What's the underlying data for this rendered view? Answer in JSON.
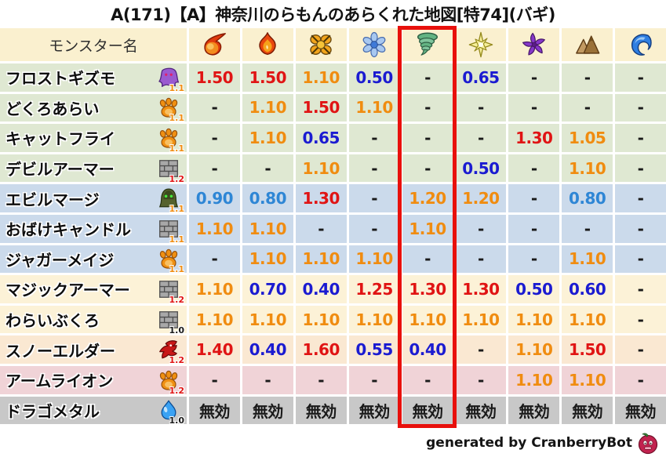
{
  "title": "A(171)【A】神奈川のらもんのあらくれた地図[特74](バギ)",
  "footer": {
    "credit": "generated by CranberryBot",
    "bot_icon": "cranberry-bot-icon"
  },
  "colors": {
    "header_bg": "#faf0cf",
    "highlight_box": "#e8100c",
    "row_bg": {
      "green": "#dfe8d2",
      "blue": "#cbdaeb",
      "cream": "#fcf2d7",
      "peach": "#fae8d2",
      "pink": "#f0d3d7",
      "gray": "#c8c8c8"
    },
    "value_colors": {
      "red": "#e01414",
      "orange": "#f08c10",
      "deepblue": "#1b1bd1",
      "skyblue": "#2e86d5",
      "plain": "#1a1a1a"
    },
    "weight_colors": {
      "orange": "#f08c10",
      "red": "#e01414",
      "black": "#1a1a1a"
    }
  },
  "table": {
    "name_header": "モンスター名",
    "element_columns": [
      {
        "icon": "fireball-icon",
        "highlighted": false
      },
      {
        "icon": "flame-icon",
        "highlighted": false
      },
      {
        "icon": "explosion-icon",
        "highlighted": false
      },
      {
        "icon": "snowflake-icon",
        "highlighted": false
      },
      {
        "icon": "tornado-icon",
        "highlighted": true
      },
      {
        "icon": "starburst-icon",
        "highlighted": false
      },
      {
        "icon": "pinwheel-icon",
        "highlighted": false
      },
      {
        "icon": "mountain-icon",
        "highlighted": false
      },
      {
        "icon": "wave-icon",
        "highlighted": false
      }
    ],
    "rows": [
      {
        "name": "フロストギズモ",
        "family_icon": "ghost-icon",
        "weight": "1.1",
        "weight_color": "orange",
        "bg": "green",
        "values": [
          "1.50",
          "1.50",
          "1.10",
          "0.50",
          "-",
          "0.65",
          "-",
          "-",
          "-"
        ],
        "value_colors": [
          "red",
          "red",
          "orange",
          "deepblue",
          "plain",
          "deepblue",
          "plain",
          "plain",
          "plain"
        ]
      },
      {
        "name": "どくろあらい",
        "family_icon": "paw-icon",
        "weight": "1.1",
        "weight_color": "orange",
        "bg": "green",
        "values": [
          "-",
          "1.10",
          "1.50",
          "1.10",
          "-",
          "-",
          "-",
          "-",
          "-"
        ],
        "value_colors": [
          "plain",
          "orange",
          "red",
          "orange",
          "plain",
          "plain",
          "plain",
          "plain",
          "plain"
        ]
      },
      {
        "name": "キャットフライ",
        "family_icon": "paw-icon",
        "weight": "1.1",
        "weight_color": "orange",
        "bg": "green",
        "values": [
          "-",
          "1.10",
          "0.65",
          "-",
          "-",
          "-",
          "1.30",
          "1.05",
          "-"
        ],
        "value_colors": [
          "plain",
          "orange",
          "deepblue",
          "plain",
          "plain",
          "plain",
          "red",
          "orange",
          "plain"
        ]
      },
      {
        "name": "デビルアーマー",
        "family_icon": "brick-icon",
        "weight": "1.2",
        "weight_color": "red",
        "bg": "green",
        "values": [
          "-",
          "-",
          "1.10",
          "-",
          "-",
          "0.50",
          "-",
          "1.10",
          "-"
        ],
        "value_colors": [
          "plain",
          "plain",
          "orange",
          "plain",
          "plain",
          "deepblue",
          "plain",
          "orange",
          "plain"
        ]
      },
      {
        "name": "エビルマージ",
        "family_icon": "hood-icon",
        "weight": "1.1",
        "weight_color": "orange",
        "bg": "blue",
        "values": [
          "0.90",
          "0.80",
          "1.30",
          "-",
          "1.20",
          "1.20",
          "-",
          "0.80",
          "-"
        ],
        "value_colors": [
          "skyblue",
          "skyblue",
          "red",
          "plain",
          "orange",
          "orange",
          "plain",
          "skyblue",
          "plain"
        ]
      },
      {
        "name": "おばけキャンドル",
        "family_icon": "brick-icon",
        "weight": "1.1",
        "weight_color": "orange",
        "bg": "blue",
        "values": [
          "1.10",
          "1.10",
          "-",
          "-",
          "1.10",
          "-",
          "-",
          "-",
          "-"
        ],
        "value_colors": [
          "orange",
          "orange",
          "plain",
          "plain",
          "orange",
          "plain",
          "plain",
          "plain",
          "plain"
        ]
      },
      {
        "name": "ジャガーメイジ",
        "family_icon": "paw-icon",
        "weight": "1.1",
        "weight_color": "orange",
        "bg": "blue",
        "values": [
          "-",
          "1.10",
          "1.10",
          "1.10",
          "-",
          "-",
          "-",
          "1.10",
          "-"
        ],
        "value_colors": [
          "plain",
          "orange",
          "orange",
          "orange",
          "plain",
          "plain",
          "plain",
          "orange",
          "plain"
        ]
      },
      {
        "name": "マジックアーマー",
        "family_icon": "brick-icon",
        "weight": "1.2",
        "weight_color": "red",
        "bg": "cream",
        "values": [
          "1.10",
          "0.70",
          "0.40",
          "1.25",
          "1.30",
          "1.30",
          "0.50",
          "0.60",
          "-"
        ],
        "value_colors": [
          "orange",
          "deepblue",
          "deepblue",
          "red",
          "red",
          "red",
          "deepblue",
          "deepblue",
          "plain"
        ]
      },
      {
        "name": "わらいぶくろ",
        "family_icon": "brick-icon",
        "weight": "1.0",
        "weight_color": "black",
        "bg": "cream",
        "values": [
          "1.10",
          "1.10",
          "1.10",
          "1.10",
          "1.10",
          "1.10",
          "1.10",
          "1.10",
          "-"
        ],
        "value_colors": [
          "orange",
          "orange",
          "orange",
          "orange",
          "orange",
          "orange",
          "orange",
          "orange",
          "plain"
        ]
      },
      {
        "name": "スノーエルダー",
        "family_icon": "dragon-icon",
        "weight": "1.2",
        "weight_color": "red",
        "bg": "peach",
        "values": [
          "1.40",
          "0.40",
          "1.60",
          "0.55",
          "0.40",
          "-",
          "1.10",
          "1.50",
          "-"
        ],
        "value_colors": [
          "red",
          "deepblue",
          "red",
          "deepblue",
          "deepblue",
          "plain",
          "orange",
          "red",
          "plain"
        ]
      },
      {
        "name": "アームライオン",
        "family_icon": "paw-icon",
        "weight": "1.2",
        "weight_color": "red",
        "bg": "pink",
        "values": [
          "-",
          "-",
          "-",
          "-",
          "-",
          "-",
          "1.10",
          "1.10",
          "-"
        ],
        "value_colors": [
          "plain",
          "plain",
          "plain",
          "plain",
          "plain",
          "plain",
          "orange",
          "orange",
          "plain"
        ]
      },
      {
        "name": "ドラゴメタル",
        "family_icon": "slime-icon",
        "weight": "1.0",
        "weight_color": "black",
        "bg": "gray",
        "values": [
          "無効",
          "無効",
          "無効",
          "無効",
          "無効",
          "無効",
          "無効",
          "無効",
          "無効"
        ],
        "value_colors": [
          "plain",
          "plain",
          "plain",
          "plain",
          "plain",
          "plain",
          "plain",
          "plain",
          "plain"
        ]
      }
    ]
  },
  "chart_data": {
    "type": "table",
    "title": "A(171)【A】神奈川のらもんのあらくれた地図[特74](バギ)",
    "columns": [
      "モンスター名",
      "fireball",
      "flame",
      "explosion",
      "snowflake",
      "tornado",
      "starburst",
      "pinwheel",
      "mountain",
      "wave"
    ],
    "highlighted_column": "tornado",
    "rows": [
      {
        "monster": "フロストギズモ",
        "weight": "1.1",
        "values": [
          "1.50",
          "1.50",
          "1.10",
          "0.50",
          "-",
          "0.65",
          "-",
          "-",
          "-"
        ]
      },
      {
        "monster": "どくろあらい",
        "weight": "1.1",
        "values": [
          "-",
          "1.10",
          "1.50",
          "1.10",
          "-",
          "-",
          "-",
          "-",
          "-"
        ]
      },
      {
        "monster": "キャットフライ",
        "weight": "1.1",
        "values": [
          "-",
          "1.10",
          "0.65",
          "-",
          "-",
          "-",
          "1.30",
          "1.05",
          "-"
        ]
      },
      {
        "monster": "デビルアーマー",
        "weight": "1.2",
        "values": [
          "-",
          "-",
          "1.10",
          "-",
          "-",
          "0.50",
          "-",
          "1.10",
          "-"
        ]
      },
      {
        "monster": "エビルマージ",
        "weight": "1.1",
        "values": [
          "0.90",
          "0.80",
          "1.30",
          "-",
          "1.20",
          "1.20",
          "-",
          "0.80",
          "-"
        ]
      },
      {
        "monster": "おばけキャンドル",
        "weight": "1.1",
        "values": [
          "1.10",
          "1.10",
          "-",
          "-",
          "1.10",
          "-",
          "-",
          "-",
          "-"
        ]
      },
      {
        "monster": "ジャガーメイジ",
        "weight": "1.1",
        "values": [
          "-",
          "1.10",
          "1.10",
          "1.10",
          "-",
          "-",
          "-",
          "1.10",
          "-"
        ]
      },
      {
        "monster": "マジックアーマー",
        "weight": "1.2",
        "values": [
          "1.10",
          "0.70",
          "0.40",
          "1.25",
          "1.30",
          "1.30",
          "0.50",
          "0.60",
          "-"
        ]
      },
      {
        "monster": "わらいぶくろ",
        "weight": "1.0",
        "values": [
          "1.10",
          "1.10",
          "1.10",
          "1.10",
          "1.10",
          "1.10",
          "1.10",
          "1.10",
          "-"
        ]
      },
      {
        "monster": "スノーエルダー",
        "weight": "1.2",
        "values": [
          "1.40",
          "0.40",
          "1.60",
          "0.55",
          "0.40",
          "-",
          "1.10",
          "1.50",
          "-"
        ]
      },
      {
        "monster": "アームライオン",
        "weight": "1.2",
        "values": [
          "-",
          "-",
          "-",
          "-",
          "-",
          "-",
          "1.10",
          "1.10",
          "-"
        ]
      },
      {
        "monster": "ドラゴメタル",
        "weight": "1.0",
        "values": [
          "無効",
          "無効",
          "無効",
          "無効",
          "無効",
          "無効",
          "無効",
          "無効",
          "無効"
        ]
      }
    ]
  }
}
